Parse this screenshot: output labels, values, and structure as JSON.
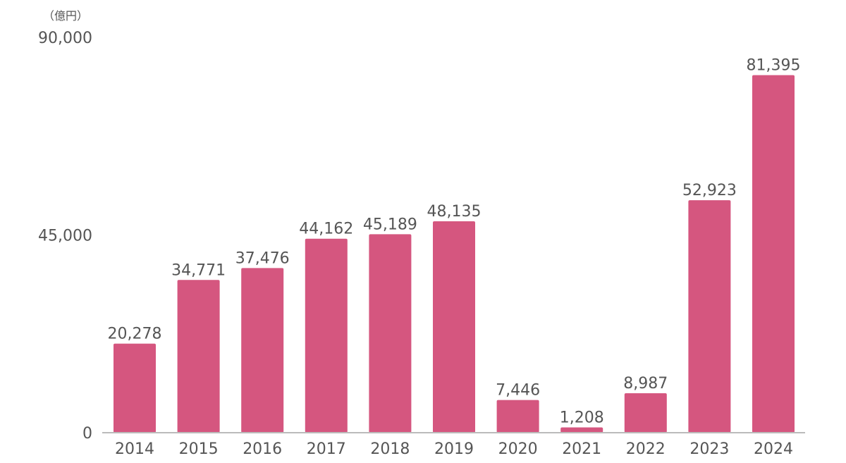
{
  "chart_data": {
    "type": "bar",
    "unit_label": "（億円）",
    "categories": [
      "2014",
      "2015",
      "2016",
      "2017",
      "2018",
      "2019",
      "2020",
      "2021",
      "2022",
      "2023",
      "2024"
    ],
    "values": [
      20278,
      34771,
      37476,
      44162,
      45189,
      48135,
      7446,
      1208,
      8987,
      52923,
      81395
    ],
    "value_labels": [
      "20,278",
      "34,771",
      "37,476",
      "44,162",
      "45,189",
      "48,135",
      "7,446",
      "1,208",
      "8,987",
      "52,923",
      "81,395"
    ],
    "y_ticks": [
      {
        "value": 0,
        "label": "0"
      },
      {
        "value": 45000,
        "label": "45,000"
      },
      {
        "value": 90000,
        "label": "90,000"
      }
    ],
    "ylim": [
      0,
      90000
    ],
    "grid": false,
    "legend": "none",
    "bar_color": "#D5567F",
    "axis_color": "#BBBBBB"
  }
}
